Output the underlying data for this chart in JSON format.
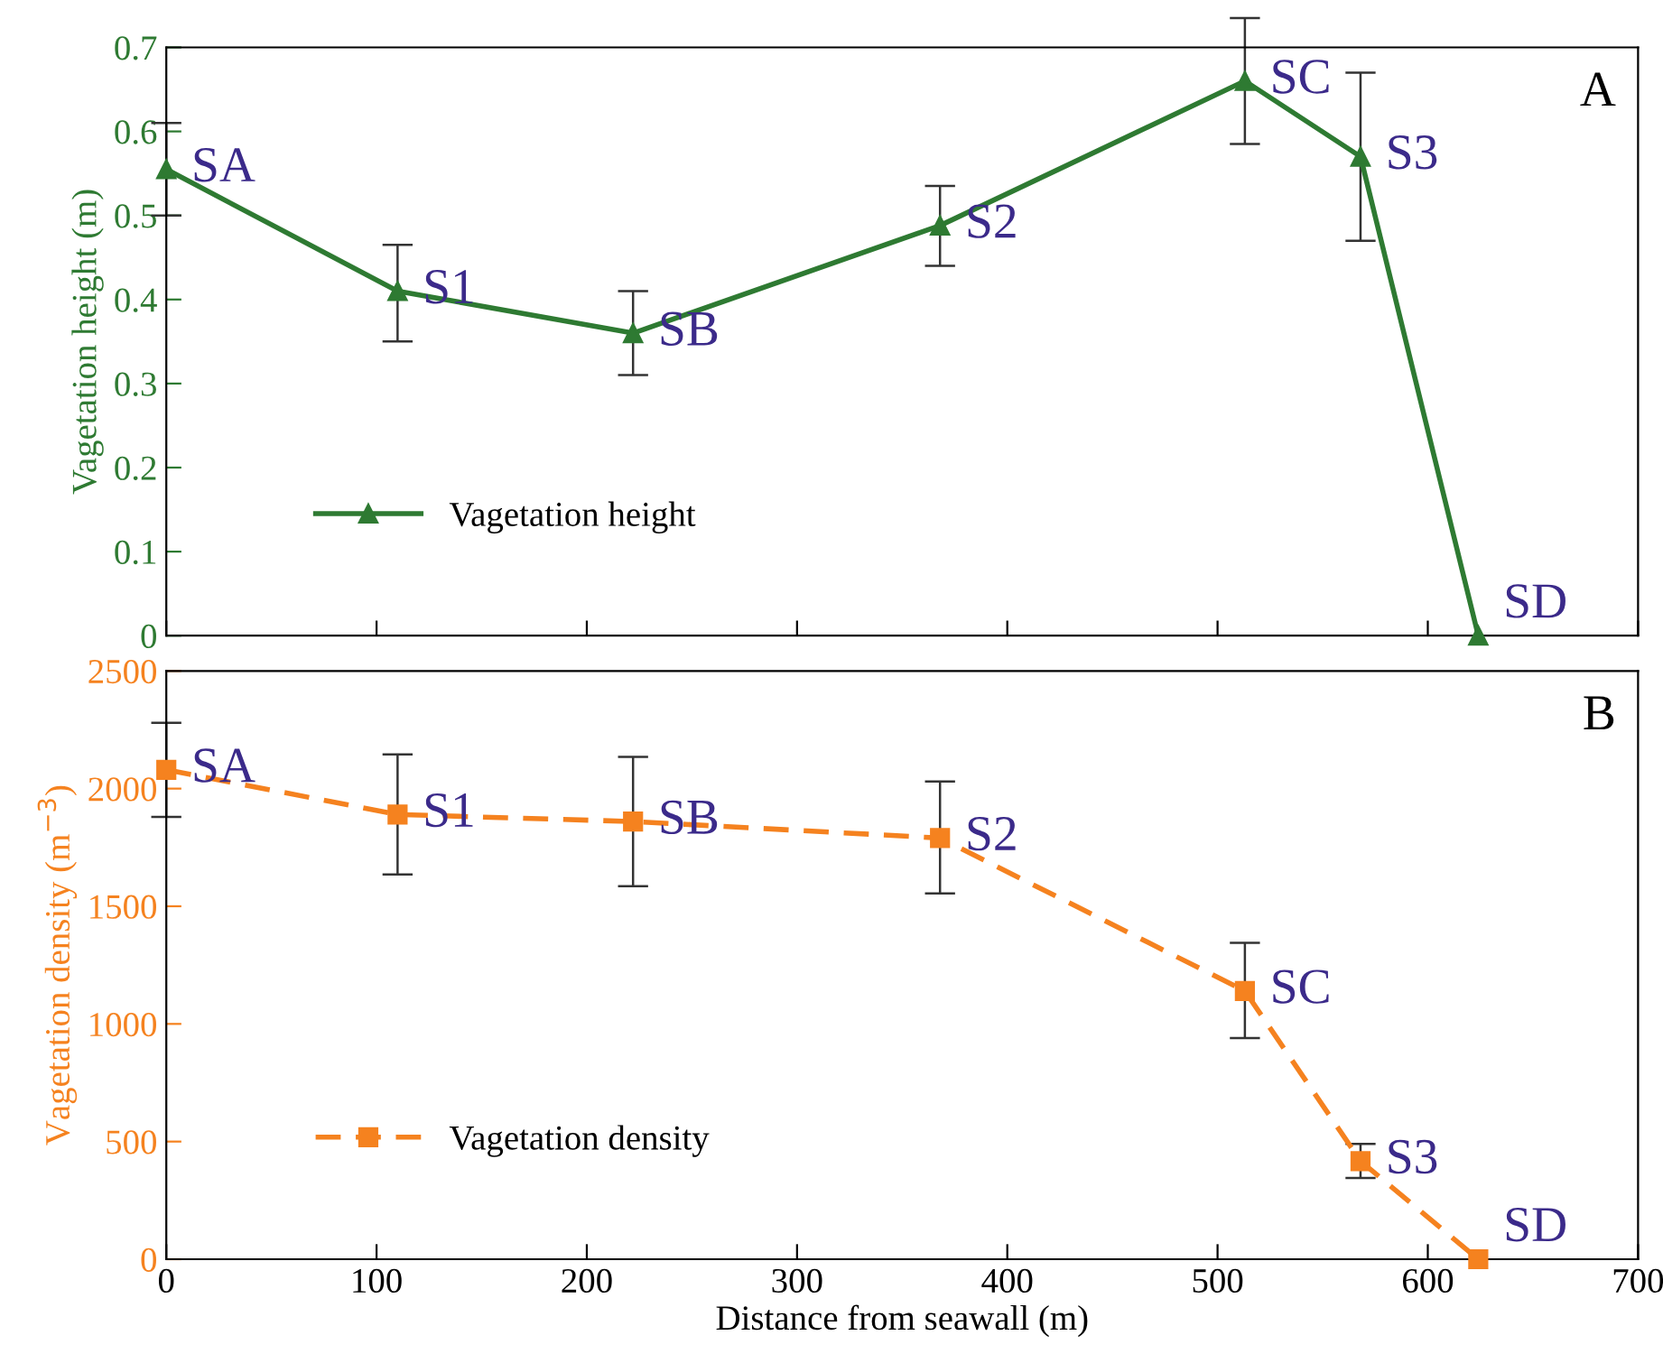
{
  "chart_data": [
    {
      "type": "line",
      "ylabel": "Vagetation height (m)",
      "x": [
        0,
        110,
        222,
        368,
        513,
        568,
        624
      ],
      "series": [
        {
          "name": "Vagetation height",
          "color": "#2e7a32",
          "values": [
            0.555,
            0.41,
            0.36,
            0.488,
            0.66,
            0.57,
            0
          ],
          "errors": [
            [
              0.5,
              0.61
            ],
            [
              0.35,
              0.465
            ],
            [
              0.31,
              0.41
            ],
            [
              0.44,
              0.535
            ],
            [
              0.585,
              0.735
            ],
            [
              0.47,
              0.67
            ],
            null
          ]
        }
      ],
      "marker": "triangle",
      "line_style": "solid",
      "legend": "bottom left",
      "xlim": [
        0,
        700
      ],
      "xticks": [
        0,
        100,
        200,
        300,
        400,
        500,
        600,
        700
      ],
      "ylim": [
        0,
        0.7
      ],
      "yticks": [
        0,
        0.1,
        0.2,
        0.3,
        0.4,
        0.5,
        0.6,
        0.7
      ],
      "tick_labels": "y",
      "annotations": [
        "A",
        {
          "text": "SA",
          "x": 0,
          "y": 0.555
        },
        {
          "text": "S1",
          "x": 110,
          "y": 0.41
        },
        {
          "text": "SB",
          "x": 222,
          "y": 0.36
        },
        {
          "text": "S2",
          "x": 368,
          "y": 0.488
        },
        {
          "text": "SC",
          "x": 513,
          "y": 0.66
        },
        {
          "text": "S3",
          "x": 568,
          "y": 0.57
        },
        {
          "text": "SD",
          "x": 624,
          "y": 0
        }
      ]
    },
    {
      "type": "line",
      "xlabel": "Distance from seawall (m)",
      "ylabel": "Vagetation density (m$^{−3}$)",
      "x": [
        0,
        110,
        222,
        368,
        513,
        568,
        624
      ],
      "series": [
        {
          "name": "Vagetation density",
          "color": "#f5821f",
          "values": [
            2080,
            1890,
            1860,
            1790,
            1140,
            417,
            0
          ],
          "errors": [
            [
              1880,
              2280
            ],
            [
              1635,
              2145
            ],
            [
              1585,
              2135
            ],
            [
              1555,
              2030
            ],
            [
              940,
              1345
            ],
            [
              345,
              490
            ],
            null
          ]
        }
      ],
      "marker": "square",
      "line_style": "dashed",
      "legend": "bottom left",
      "xlim": [
        0,
        700
      ],
      "xticks": [
        0,
        100,
        200,
        300,
        400,
        500,
        600,
        700
      ],
      "ylim": [
        0,
        2500
      ],
      "yticks": [
        0,
        500,
        1000,
        1500,
        2000,
        2500
      ],
      "annotations": [
        "B",
        {
          "text": "SA",
          "x": 0,
          "y": 2080
        },
        {
          "text": "S1",
          "x": 110,
          "y": 1890
        },
        {
          "text": "SB",
          "x": 222,
          "y": 1860
        },
        {
          "text": "S2",
          "x": 368,
          "y": 1790
        },
        {
          "text": "SC",
          "x": 513,
          "y": 1140
        },
        {
          "text": "S3",
          "x": 568,
          "y": 417
        },
        {
          "text": "SD",
          "x": 624,
          "y": 0
        }
      ]
    }
  ]
}
